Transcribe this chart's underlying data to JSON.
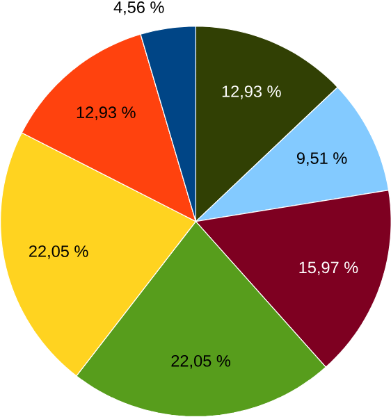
{
  "chart_data": {
    "type": "pie",
    "categories": [
      null,
      null,
      null,
      null,
      null,
      null,
      null
    ],
    "values": [
      12.93,
      9.51,
      15.97,
      22.05,
      22.05,
      12.93,
      4.56
    ],
    "colors": [
      "#314004",
      "#83caff",
      "#7e0021",
      "#579d1c",
      "#ffd320",
      "#ff420e",
      "#004586"
    ],
    "value_labels": [
      "12,93 %",
      "9,51 %",
      "15,97 %",
      "22,05 %",
      "22,05 %",
      "12,93 %",
      "4,56 %"
    ]
  }
}
